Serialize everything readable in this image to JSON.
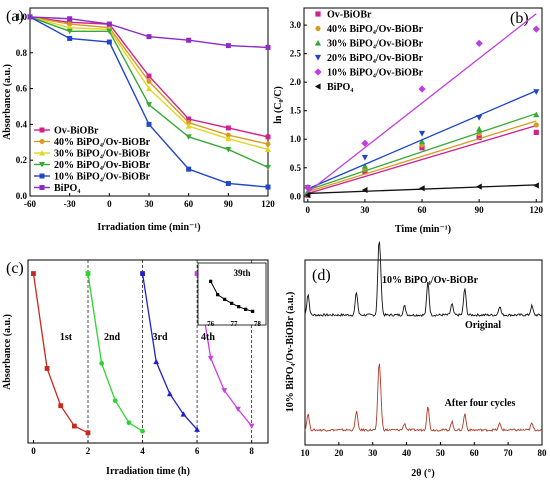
{
  "chart_data": [
    {
      "panel": "(a)",
      "type": "line",
      "xlabel": "Irradiation time (min⁻¹)",
      "ylabel": "Absorbance (a.u.)",
      "x": [
        -60,
        -30,
        0,
        30,
        60,
        90,
        120
      ],
      "xticks": [
        "-60",
        "-30",
        "0",
        "30",
        "60",
        "90",
        "120"
      ],
      "xlim": [
        -60,
        120
      ],
      "ylim": [
        0.0,
        1.05
      ],
      "yticks": [
        "0.0",
        "0.2",
        "0.4",
        "0.6",
        "0.8",
        "1.0"
      ],
      "legend_position": "bottom-left",
      "series": [
        {
          "name": "Ov-BiOBr",
          "color": "#d0218c",
          "marker": "square",
          "values": [
            1.0,
            0.97,
            0.96,
            0.67,
            0.43,
            0.38,
            0.33
          ]
        },
        {
          "name": "40% BiPO₄/Ov-BiOBr",
          "color": "#d79a22",
          "marker": "circle",
          "values": [
            1.0,
            0.96,
            0.94,
            0.64,
            0.41,
            0.34,
            0.29
          ]
        },
        {
          "name": "30% BiPO₄/Ov-BiOBr",
          "color": "#e5d421",
          "marker": "triangle",
          "values": [
            1.0,
            0.94,
            0.93,
            0.6,
            0.39,
            0.32,
            0.26
          ]
        },
        {
          "name": "20% BiPO₄/Ov-BiOBr",
          "color": "#37a935",
          "marker": "triangle-down",
          "values": [
            1.0,
            0.92,
            0.92,
            0.51,
            0.33,
            0.26,
            0.16
          ]
        },
        {
          "name": "10% BiPO₄/Ov-BiOBr",
          "color": "#2146c9",
          "marker": "square",
          "values": [
            1.0,
            0.88,
            0.86,
            0.4,
            0.15,
            0.07,
            0.05
          ]
        },
        {
          "name": "BiPO₄",
          "color": "#8e2bc4",
          "marker": "square",
          "values": [
            1.0,
            0.99,
            0.96,
            0.89,
            0.87,
            0.84,
            0.83
          ]
        }
      ]
    },
    {
      "panel": "(b)",
      "type": "scatter",
      "xlabel": "Time (min⁻¹)",
      "ylabel": "ln (C₀/C)",
      "x": [
        0,
        30,
        60,
        90,
        120
      ],
      "xticks": [
        "0",
        "30",
        "60",
        "90",
        "120"
      ],
      "xlim": [
        -2,
        123
      ],
      "ylim": [
        -0.1,
        3.3
      ],
      "yticks": [
        "0.0",
        "0.5",
        "1.0",
        "1.5",
        "2.0",
        "2.5",
        "3.0"
      ],
      "fit_lines": true,
      "legend_position": "top-left",
      "series": [
        {
          "name": "Ov-BiOBr",
          "color": "#d0218c",
          "marker": "square",
          "values": [
            0.02,
            0.43,
            0.85,
            1.03,
            1.12
          ],
          "fit": [
            0.05,
            1.24
          ]
        },
        {
          "name": "40% BiPO₄/Ov-BiOBr",
          "color": "#d79a22",
          "marker": "circle",
          "values": [
            0.04,
            0.47,
            0.9,
            1.1,
            1.25
          ],
          "fit": [
            0.08,
            1.32
          ]
        },
        {
          "name": "30% BiPO₄/Ov-BiOBr",
          "color": "#37a935",
          "marker": "triangle",
          "values": [
            0.08,
            0.53,
            0.96,
            1.18,
            1.43
          ],
          "fit": [
            0.11,
            1.45
          ]
        },
        {
          "name": "20% BiPO₄/Ov-BiOBr",
          "color": "#2146c9",
          "marker": "triangle-down",
          "values": [
            0.15,
            0.68,
            1.1,
            1.38,
            1.83
          ],
          "fit": [
            0.13,
            1.85
          ]
        },
        {
          "name": "10% BiPO₄/Ov-BiOBr",
          "color": "#bf3de0",
          "marker": "diamond",
          "values": [
            0.15,
            0.93,
            1.88,
            2.68,
            2.93
          ],
          "fit": [
            0.07,
            3.2
          ]
        },
        {
          "name": "BiPO₄",
          "color": "#111111",
          "marker": "triangle-left",
          "values": [
            0.02,
            0.11,
            0.14,
            0.17,
            0.19
          ],
          "fit": [
            0.05,
            0.2
          ]
        }
      ]
    },
    {
      "panel": "(c)",
      "type": "line",
      "xlabel": "Irradiation time (h)",
      "ylabel": "Absorbance (a.u.)",
      "xticks": [
        "0",
        "2",
        "4",
        "6",
        "8"
      ],
      "xlim": [
        -0.2,
        8.6
      ],
      "ylim": [
        0.0,
        1.08
      ],
      "cycle_labels": [
        "1st",
        "2nd",
        "3rd",
        "4th"
      ],
      "dashed_lines_at_x": [
        2,
        4,
        6,
        8
      ],
      "series": [
        {
          "name": "1st",
          "color": "#c8281e",
          "x": [
            0,
            0.5,
            1,
            1.5,
            2
          ],
          "values": [
            1.0,
            0.44,
            0.22,
            0.1,
            0.06
          ]
        },
        {
          "name": "2nd",
          "color": "#2fd52f",
          "x": [
            2,
            2.5,
            3,
            3.5,
            4
          ],
          "values": [
            1.0,
            0.47,
            0.25,
            0.12,
            0.07
          ]
        },
        {
          "name": "3rd",
          "color": "#2020c8",
          "x": [
            4,
            4.5,
            5,
            5.5,
            6
          ],
          "values": [
            1.0,
            0.48,
            0.29,
            0.17,
            0.08
          ]
        },
        {
          "name": "4th",
          "color": "#cc3fe8",
          "x": [
            6,
            6.5,
            7,
            7.5,
            8
          ],
          "values": [
            1.0,
            0.5,
            0.31,
            0.2,
            0.1
          ]
        }
      ],
      "inset": {
        "title": "39th",
        "xticks": [
          "76",
          "77",
          "78"
        ],
        "xlim": [
          75.8,
          78.2
        ],
        "ylim": [
          0.45,
          1.05
        ],
        "x": [
          76,
          76.3,
          76.6,
          76.9,
          77.2,
          77.5,
          77.8
        ],
        "values": [
          1.0,
          0.8,
          0.73,
          0.67,
          0.62,
          0.58,
          0.55
        ]
      }
    },
    {
      "panel": "(d)",
      "type": "line",
      "title": "10% BiPO₄/Ov-BiOBr",
      "xlabel": "2θ (°)",
      "ylabel": "10% BiPO₄/Ov-BiOBr (a.u.)",
      "xticks": [
        "10",
        "20",
        "30",
        "40",
        "50",
        "60",
        "70",
        "80"
      ],
      "xlim": [
        10,
        80
      ],
      "series": [
        {
          "name": "Original",
          "color": "#111111",
          "peaks": [
            [
              10.9,
              0.35
            ],
            [
              25.2,
              0.38
            ],
            [
              31.8,
              1.0
            ],
            [
              32.3,
              0.55
            ],
            [
              39.4,
              0.15
            ],
            [
              46.3,
              0.55
            ],
            [
              53.4,
              0.18
            ],
            [
              57.2,
              0.45
            ],
            [
              67.5,
              0.15
            ],
            [
              77.0,
              0.15
            ]
          ]
        },
        {
          "name": "After four cycles",
          "color": "#b03a26",
          "peaks": [
            [
              10.9,
              0.3
            ],
            [
              25.2,
              0.35
            ],
            [
              31.8,
              1.0
            ],
            [
              32.3,
              0.55
            ],
            [
              39.4,
              0.12
            ],
            [
              46.3,
              0.45
            ],
            [
              53.4,
              0.15
            ],
            [
              57.2,
              0.3
            ],
            [
              67.5,
              0.12
            ],
            [
              77.0,
              0.12
            ]
          ]
        }
      ]
    }
  ]
}
